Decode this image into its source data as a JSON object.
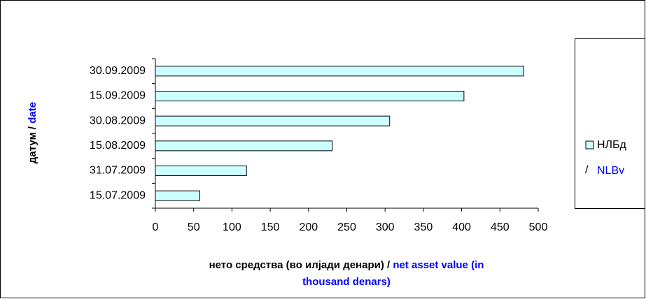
{
  "chart_data": {
    "type": "bar",
    "orientation": "horizontal",
    "categories": [
      "30.09.2009",
      "15.09.2009",
      "30.08.2009",
      "15.08.2009",
      "31.07.2009",
      "15.07.2009"
    ],
    "series": [
      {
        "name": "НЛБд",
        "name_en": "NLBv",
        "color": "#ccffff",
        "values": [
          481,
          403,
          306,
          231,
          119,
          58
        ]
      }
    ],
    "legend_separator": "/",
    "xlim": [
      0,
      500
    ],
    "xticks": [
      0,
      50,
      100,
      150,
      200,
      250,
      300,
      350,
      400,
      450,
      500
    ],
    "xlabel": {
      "mk": "нето средства (во илјади денари) /",
      "en": [
        "net asset value (in",
        "thousand denars)"
      ]
    },
    "ylabel": {
      "mk": "датум  /",
      "en": "date"
    },
    "legend": "right"
  }
}
